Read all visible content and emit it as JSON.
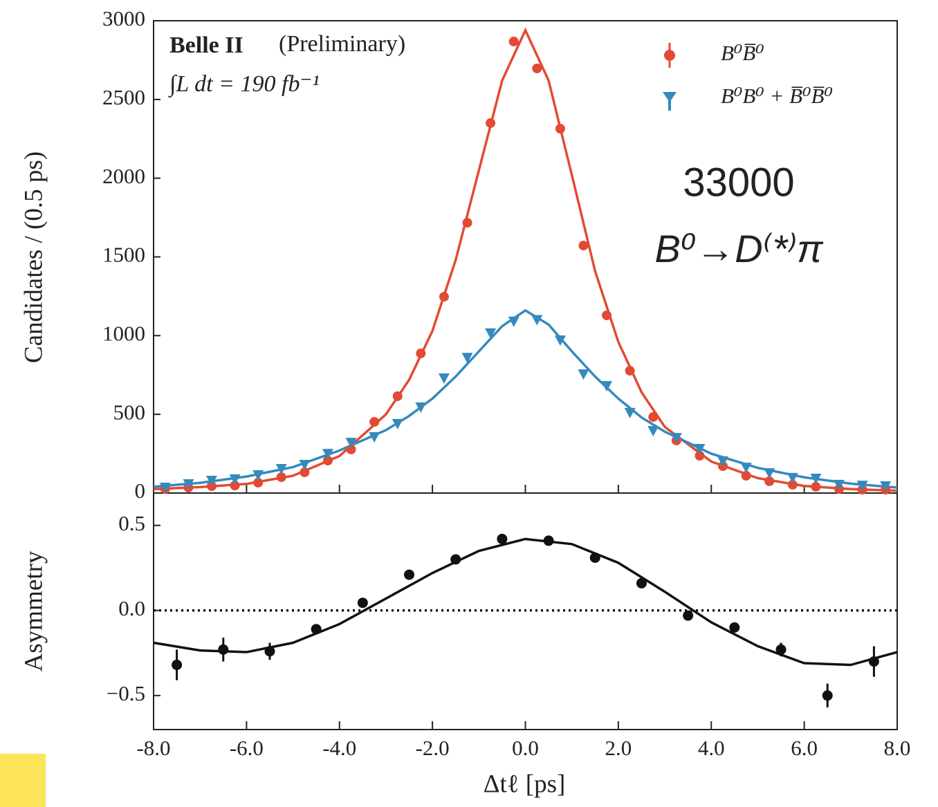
{
  "chart_data": [
    {
      "type": "scatter",
      "y_label": "Candidates / (0.5 ps)",
      "annotations": [
        "Belle II",
        "(Preliminary)",
        "∫L dt = 190 fb⁻¹",
        "33000",
        "B⁰→D⁽*⁾π"
      ],
      "xlim": [
        -8,
        8
      ],
      "ylim": [
        0,
        3000
      ],
      "yticks": [
        0,
        500,
        1000,
        1500,
        2000,
        2500,
        3000
      ],
      "x": [
        -7.75,
        -7.25,
        -6.75,
        -6.25,
        -5.75,
        -5.25,
        -4.75,
        -4.25,
        -3.75,
        -3.25,
        -2.75,
        -2.25,
        -1.75,
        -1.25,
        -0.75,
        -0.25,
        0.25,
        0.75,
        1.25,
        1.75,
        2.25,
        2.75,
        3.25,
        3.75,
        4.25,
        4.75,
        5.25,
        5.75,
        6.25,
        6.75,
        7.25,
        7.75
      ],
      "series": [
        {
          "name": "B⁰B̅⁰",
          "color": "#e24a33",
          "marker": "circle",
          "values": [
            26,
            35,
            44,
            48,
            66,
            101,
            132,
            206,
            277,
            452,
            615,
            887,
            1247,
            1717,
            2350,
            2868,
            2697,
            2314,
            1572,
            1129,
            777,
            483,
            334,
            237,
            171,
            110,
            75,
            53,
            40,
            26,
            22,
            22
          ]
        },
        {
          "name": "B⁰B⁰ + B̅⁰B̅⁰",
          "color": "#348abd",
          "marker": "triangle",
          "values": [
            35,
            57,
            79,
            88,
            114,
            154,
            180,
            250,
            320,
            356,
            440,
            545,
            729,
            860,
            1015,
            1090,
            1100,
            970,
            755,
            680,
            510,
            395,
            351,
            281,
            202,
            162,
            127,
            97,
            92,
            53,
            48,
            44
          ]
        }
      ],
      "fit": {
        "x": [
          -8,
          -7,
          -6,
          -5,
          -4,
          -3,
          -2.5,
          -2,
          -1.5,
          -1,
          -0.5,
          0,
          0.5,
          1,
          1.5,
          2,
          2.5,
          3,
          4,
          5,
          6,
          7,
          8
        ],
        "series": [
          {
            "color": "#e24a33",
            "values": [
              25,
              38,
              58,
              110,
              235,
              500,
              720,
              1030,
              1480,
              2050,
              2620,
              2940,
              2620,
              2020,
              1410,
              960,
              640,
              420,
              200,
              95,
              45,
              25,
              15
            ]
          },
          {
            "color": "#348abd",
            "values": [
              40,
              65,
              105,
              165,
              270,
              400,
              490,
              600,
              740,
              900,
              1060,
              1160,
              1070,
              900,
              740,
              600,
              480,
              390,
              250,
              160,
              100,
              60,
              35
            ]
          }
        ]
      }
    },
    {
      "type": "errorbar",
      "y_label": "Asymmetry",
      "x_label": "Δtℓ [ps]",
      "xlim": [
        -8,
        8
      ],
      "ylim": [
        -0.7,
        0.69
      ],
      "xticks": [
        {
          "value": -8,
          "label": "-8.0"
        },
        {
          "value": -6,
          "label": "-6.0"
        },
        {
          "value": -4,
          "label": "-4.0"
        },
        {
          "value": -2,
          "label": "-2.0"
        },
        {
          "value": 0,
          "label": "0.0"
        },
        {
          "value": 2,
          "label": "2.0"
        },
        {
          "value": 4,
          "label": "4.0"
        },
        {
          "value": 6,
          "label": "6.0"
        },
        {
          "value": 8,
          "label": "8.0"
        }
      ],
      "yticks": [
        {
          "value": -0.5,
          "label": "−0.5"
        },
        {
          "value": 0,
          "label": "0.0"
        },
        {
          "value": 0.5,
          "label": "0.5"
        }
      ],
      "hline": 0,
      "x": [
        -7.5,
        -6.5,
        -5.5,
        -4.5,
        -3.5,
        -2.5,
        -1.5,
        -0.5,
        0.5,
        1.5,
        2.5,
        3.5,
        4.5,
        5.5,
        6.5,
        7.5
      ],
      "color": "#111111",
      "values": [
        -0.32,
        -0.23,
        -0.24,
        -0.11,
        0.045,
        0.21,
        0.3,
        0.42,
        0.41,
        0.31,
        0.16,
        -0.03,
        -0.1,
        -0.23,
        -0.5,
        -0.3
      ],
      "errors": [
        0.09,
        0.07,
        0.05,
        0.03,
        0.02,
        0.02,
        0.02,
        0.02,
        0.02,
        0.02,
        0.02,
        0.02,
        0.03,
        0.04,
        0.07,
        0.09
      ],
      "fit": {
        "x": [
          -8,
          -7,
          -6,
          -5,
          -4,
          -3,
          -2,
          -1,
          0,
          1,
          2,
          3,
          4,
          5,
          6,
          7,
          8
        ],
        "values": [
          -0.19,
          -0.235,
          -0.245,
          -0.19,
          -0.08,
          0.07,
          0.22,
          0.35,
          0.42,
          0.39,
          0.28,
          0.11,
          -0.07,
          -0.21,
          -0.31,
          -0.32,
          -0.245
        ]
      }
    }
  ]
}
